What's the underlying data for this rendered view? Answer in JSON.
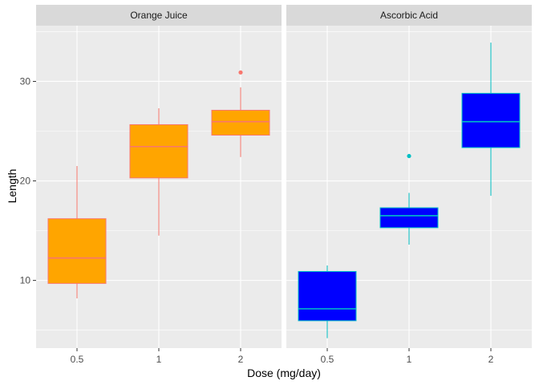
{
  "colors": {
    "panel_bg": "#ebebeb",
    "strip_bg": "#d9d9d9",
    "grid_major": "#ffffff",
    "axis_text": "#4d4d4d",
    "title_text": "#000000"
  },
  "chart_data": {
    "type": "boxplot",
    "xlabel": "Dose (mg/day)",
    "ylabel": "Length",
    "ylim": [
      3.2,
      35.6
    ],
    "y_ticks": [
      10,
      20,
      30
    ],
    "categories": [
      "0.5",
      "1",
      "2"
    ],
    "grid": true,
    "legend": "none",
    "panels": [
      {
        "name": "Orange Juice",
        "fill": "#ffa500",
        "line": "#f8766d",
        "boxes": [
          {
            "category": "0.5",
            "whisker_low": 8.2,
            "q1": 9.7,
            "median": 12.25,
            "q3": 16.2,
            "whisker_high": 21.5,
            "outliers": []
          },
          {
            "category": "1",
            "whisker_low": 14.5,
            "q1": 20.3,
            "median": 23.45,
            "q3": 25.65,
            "whisker_high": 27.3,
            "outliers": []
          },
          {
            "category": "2",
            "whisker_low": 22.4,
            "q1": 24.6,
            "median": 25.95,
            "q3": 27.1,
            "whisker_high": 29.4,
            "outliers": [
              30.9
            ]
          }
        ]
      },
      {
        "name": "Ascorbic Acid",
        "fill": "#0000ff",
        "line": "#00bfc4",
        "boxes": [
          {
            "category": "0.5",
            "whisker_low": 4.2,
            "q1": 5.95,
            "median": 7.15,
            "q3": 10.9,
            "whisker_high": 11.5,
            "outliers": []
          },
          {
            "category": "1",
            "whisker_low": 13.6,
            "q1": 15.3,
            "median": 16.5,
            "q3": 17.3,
            "whisker_high": 18.8,
            "outliers": [
              22.5
            ]
          },
          {
            "category": "2",
            "whisker_low": 18.5,
            "q1": 23.35,
            "median": 25.95,
            "q3": 28.8,
            "whisker_high": 33.9,
            "outliers": []
          }
        ]
      }
    ]
  }
}
